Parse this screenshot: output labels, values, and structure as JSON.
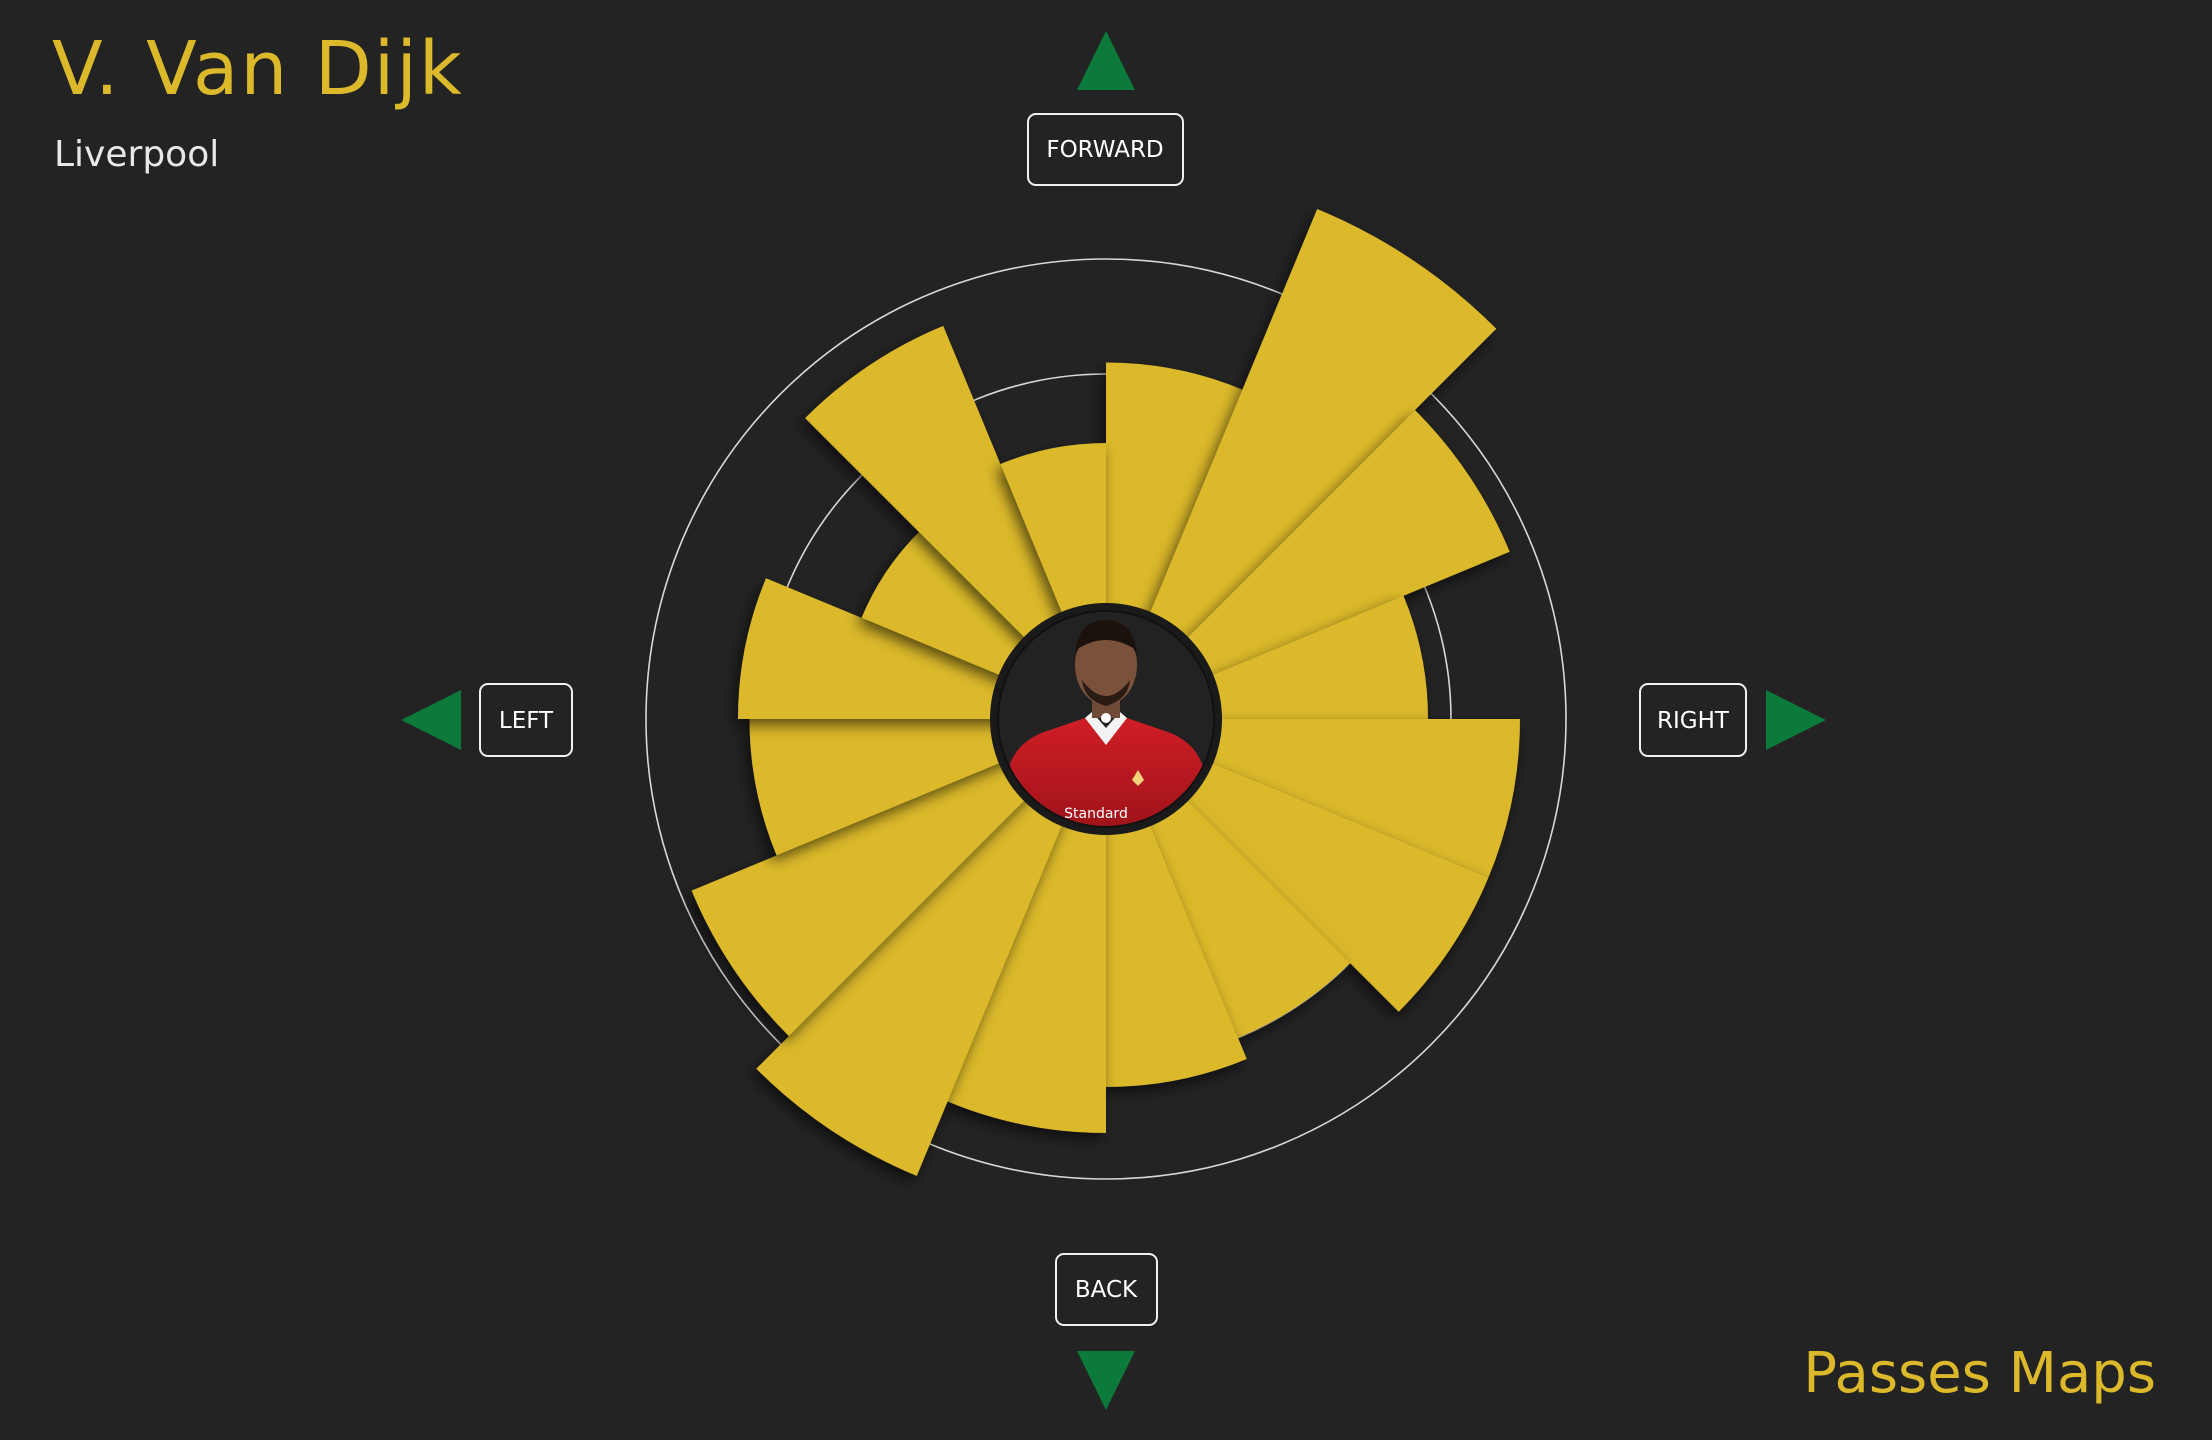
{
  "header": {
    "player_name": "V. Van Dijk",
    "team": "Liverpool"
  },
  "footer": {
    "title": "Passes Maps"
  },
  "directions": {
    "forward": "FORWARD",
    "back": "BACK",
    "left": "LEFT",
    "right": "RIGHT"
  },
  "player_photo": {
    "icon": "player-avatar-icon",
    "shirt_text": "Standard"
  },
  "colors": {
    "background": "#232323",
    "wedge": "#dbb92b",
    "arrow": "#0b7a3b",
    "ring": "#d8d8d8",
    "title": "#dbb92b",
    "text": "#e8e8e8"
  },
  "chart_data": {
    "type": "polar-bar",
    "sectors": 16,
    "sector_width_deg": 22.5,
    "start_direction": "forward",
    "orientation": "clockwise",
    "rings": 4,
    "values": [
      3.1,
      4.8,
      3.8,
      2.8,
      3.6,
      3.6,
      3.0,
      3.2,
      3.6,
      4.3,
      3.9,
      3.1,
      3.2,
      2.3,
      3.7,
      2.4
    ],
    "rmax": 5
  }
}
